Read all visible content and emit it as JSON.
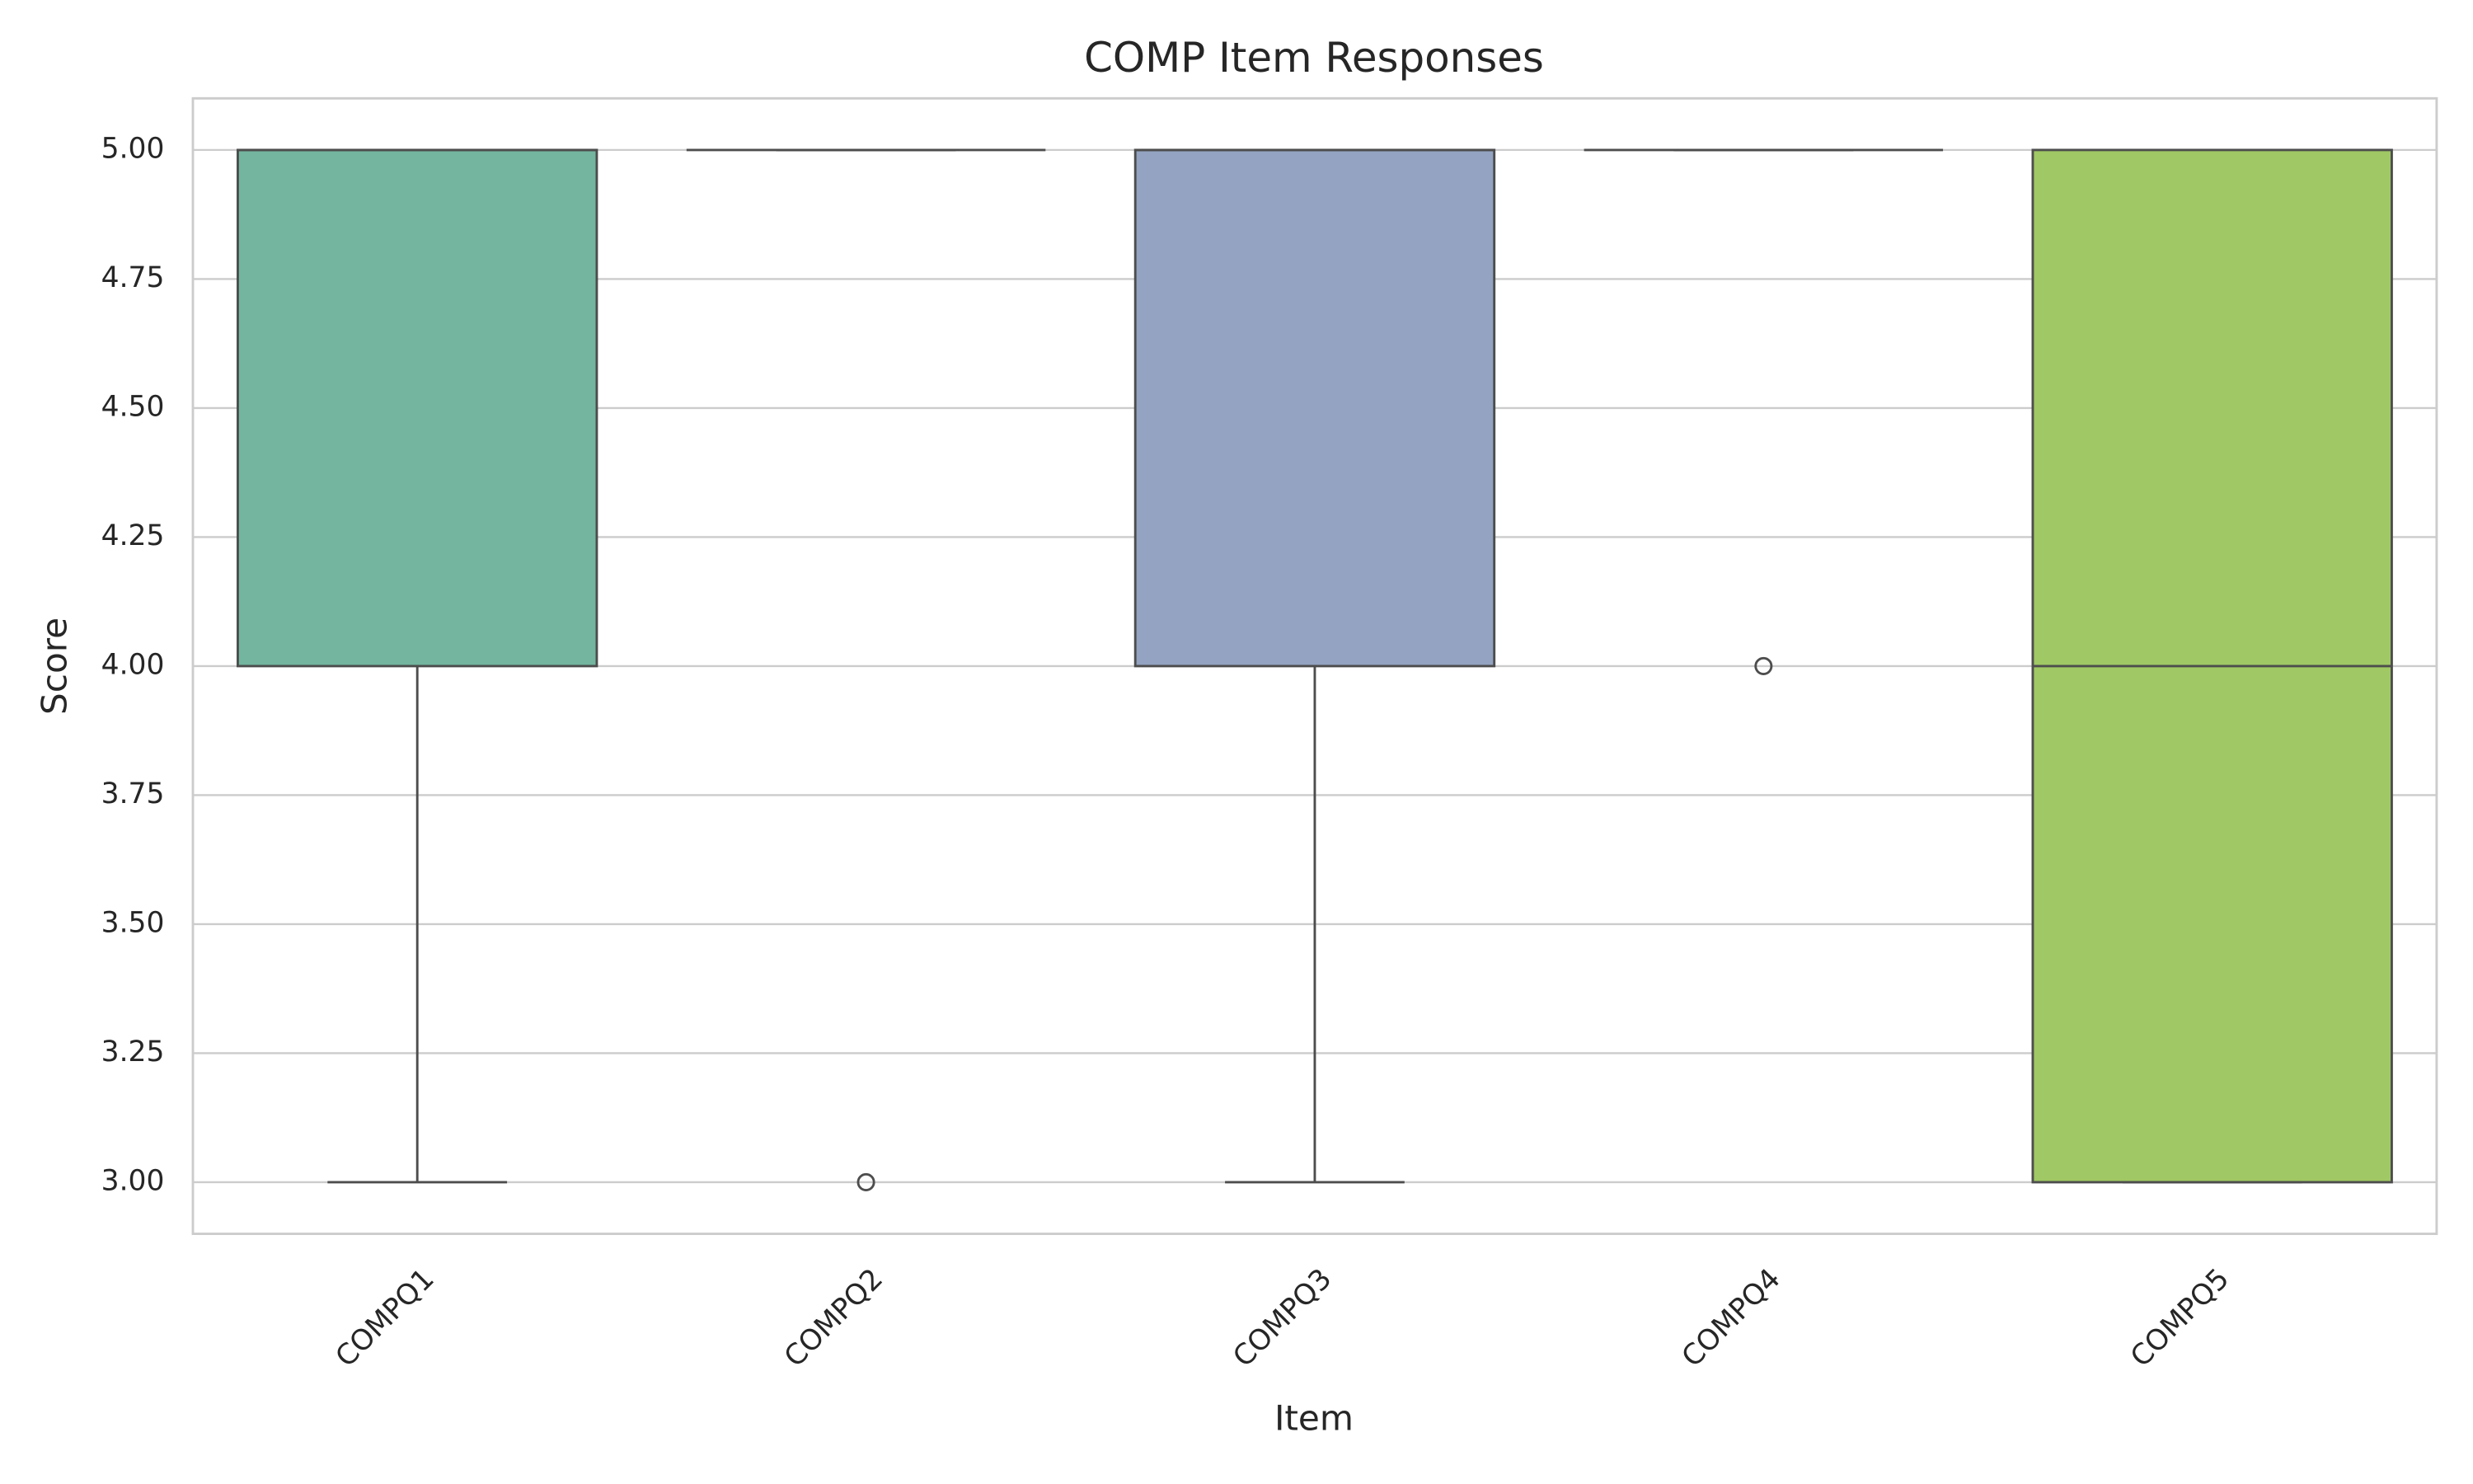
{
  "chart_data": {
    "type": "box",
    "title": "COMP Item Responses",
    "x_label": "Item",
    "y_label": "Score",
    "categories": [
      "COMPQ1",
      "COMPQ2",
      "COMPQ3",
      "COMPQ4",
      "COMPQ5"
    ],
    "colors": [
      "#73b59f",
      "#e59a74",
      "#93a3c1",
      "#d495bb",
      "#a0c864"
    ],
    "boxes": [
      {
        "whislo": 3,
        "q1": 4,
        "med": 5,
        "q3": 5,
        "whishi": 5,
        "fliers": []
      },
      {
        "whislo": 5,
        "q1": 5,
        "med": 5,
        "q3": 5,
        "whishi": 5,
        "fliers": [
          3
        ]
      },
      {
        "whislo": 3,
        "q1": 4,
        "med": 5,
        "q3": 5,
        "whishi": 5,
        "fliers": []
      },
      {
        "whislo": 5,
        "q1": 5,
        "med": 5,
        "q3": 5,
        "whishi": 5,
        "fliers": [
          4
        ]
      },
      {
        "whislo": 3,
        "q1": 3,
        "med": 4,
        "q3": 5,
        "whishi": 5,
        "fliers": []
      }
    ],
    "ylim": [
      2.9,
      5.1
    ],
    "yticks": [
      {
        "value": 3,
        "label": "3.00"
      },
      {
        "value": 3.25,
        "label": "3.25"
      },
      {
        "value": 3.5,
        "label": "3.50"
      },
      {
        "value": 3.75,
        "label": "3.75"
      },
      {
        "value": 4,
        "label": "4.00"
      },
      {
        "value": 4.25,
        "label": "4.25"
      },
      {
        "value": 4.5,
        "label": "4.50"
      },
      {
        "value": 4.75,
        "label": "4.75"
      },
      {
        "value": 5,
        "label": "5.00"
      }
    ],
    "grid": true
  }
}
